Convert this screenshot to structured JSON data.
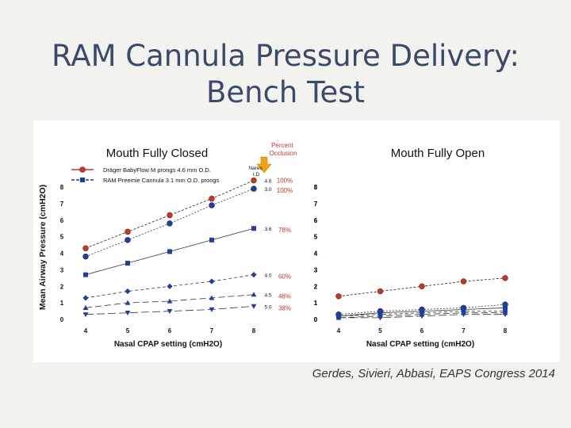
{
  "slide": {
    "title_line1": "RAM Cannula Pressure Delivery:",
    "title_line2": "Bench Test",
    "citation": "Gerdes, Sivieri, Abbasi, EAPS Congress 2014"
  },
  "chart_data": [
    {
      "type": "line",
      "title": "Mouth Fully Closed",
      "xlabel": "Nasal CPAP setting (cmH2O)",
      "ylabel": "Mean Airway Pressure (cmH2O)",
      "x": [
        4,
        5,
        6,
        7,
        8
      ],
      "xlim": [
        4,
        8
      ],
      "ylim": [
        0,
        8
      ],
      "yticks": [
        0,
        1,
        2,
        3,
        4,
        5,
        6,
        7,
        8
      ],
      "legend": [
        "Dräger BabyFlow M prongs 4.6 mm O.D.",
        "RAM Preemie Cannula 3.1 mm O.D. prongs"
      ],
      "series": [
        {
          "marker": "circle",
          "color": "#c0392b",
          "values": [
            4.3,
            5.3,
            6.3,
            7.3,
            8.4
          ],
          "gap_label": "4.6",
          "occlusion": "100%"
        },
        {
          "marker": "circle",
          "color": "#1f3f99",
          "values": [
            3.8,
            4.8,
            5.8,
            6.9,
            7.9
          ],
          "gap_label": "3.0",
          "occlusion": "100%"
        },
        {
          "marker": "square",
          "color": "#1f3f99",
          "values": [
            2.7,
            3.4,
            4.1,
            4.8,
            5.5
          ],
          "gap_label": "3.6",
          "occlusion": "78%"
        },
        {
          "marker": "diamond",
          "color": "#1f3f99",
          "values": [
            1.3,
            1.7,
            2.0,
            2.3,
            2.7
          ],
          "gap_label": "4.0",
          "occlusion": "60%"
        },
        {
          "marker": "triangle-up",
          "color": "#1f3f99",
          "values": [
            0.7,
            1.0,
            1.1,
            1.3,
            1.5
          ],
          "gap_label": "4.5",
          "occlusion": "48%"
        },
        {
          "marker": "triangle-down",
          "color": "#1f3f99",
          "values": [
            0.3,
            0.4,
            0.5,
            0.6,
            0.8
          ],
          "gap_label": "5.0",
          "occlusion": "38%"
        }
      ],
      "annotations": {
        "percent_occlusion": "Percent Occlusion",
        "nares_id": "Nares I.D"
      }
    },
    {
      "type": "line",
      "title": "Mouth Fully Open",
      "xlabel": "Nasal CPAP setting (cmH2O)",
      "x": [
        4,
        5,
        6,
        7,
        8
      ],
      "xlim": [
        4,
        8
      ],
      "ylim": [
        0,
        8
      ],
      "yticks": [
        0,
        1,
        2,
        3,
        4,
        5,
        6,
        7,
        8
      ],
      "series": [
        {
          "marker": "circle",
          "color": "#c0392b",
          "values": [
            1.4,
            1.7,
            2.0,
            2.3,
            2.5
          ]
        },
        {
          "marker": "circle",
          "color": "#1f3f99",
          "values": [
            0.3,
            0.5,
            0.6,
            0.7,
            0.9
          ]
        },
        {
          "marker": "square",
          "color": "#1f3f99",
          "values": [
            0.2,
            0.4,
            0.5,
            0.6,
            0.7
          ]
        },
        {
          "marker": "diamond",
          "color": "#1f3f99",
          "values": [
            0.2,
            0.3,
            0.4,
            0.5,
            0.5
          ]
        },
        {
          "marker": "triangle-up",
          "color": "#1f3f99",
          "values": [
            0.1,
            0.2,
            0.3,
            0.4,
            0.4
          ]
        },
        {
          "marker": "triangle-down",
          "color": "#1f3f99",
          "values": [
            0.1,
            0.1,
            0.2,
            0.3,
            0.3
          ]
        }
      ]
    }
  ],
  "colors": {
    "accent_red": "#c0392b",
    "series_blue": "#1f3f99",
    "occlusion_red": "#c0392b",
    "arrow_orange": "#f0a21a",
    "title_navy": "#3b4a6b"
  }
}
